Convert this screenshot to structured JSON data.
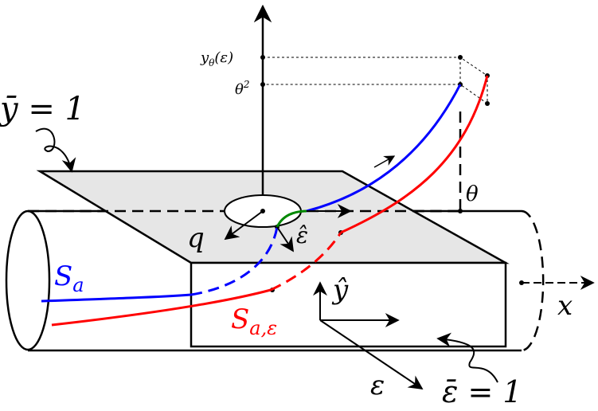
{
  "labels": {
    "y_bar_eq": "ȳ = 1",
    "y_theta": {
      "main": "y",
      "sub": "θ",
      "rest": "(ε)"
    },
    "theta_sq": {
      "main": "θ",
      "sup": "2"
    },
    "theta": "θ",
    "q": "q",
    "eps_hat": "ε̂",
    "s_a": {
      "main": "S",
      "sub": "a"
    },
    "s_a_eps": {
      "main": "S",
      "sub": "a,ε"
    },
    "y_hat": "ŷ",
    "x": "x",
    "eps": "ε",
    "eps_bar_eq": "ε̄ = 1"
  }
}
